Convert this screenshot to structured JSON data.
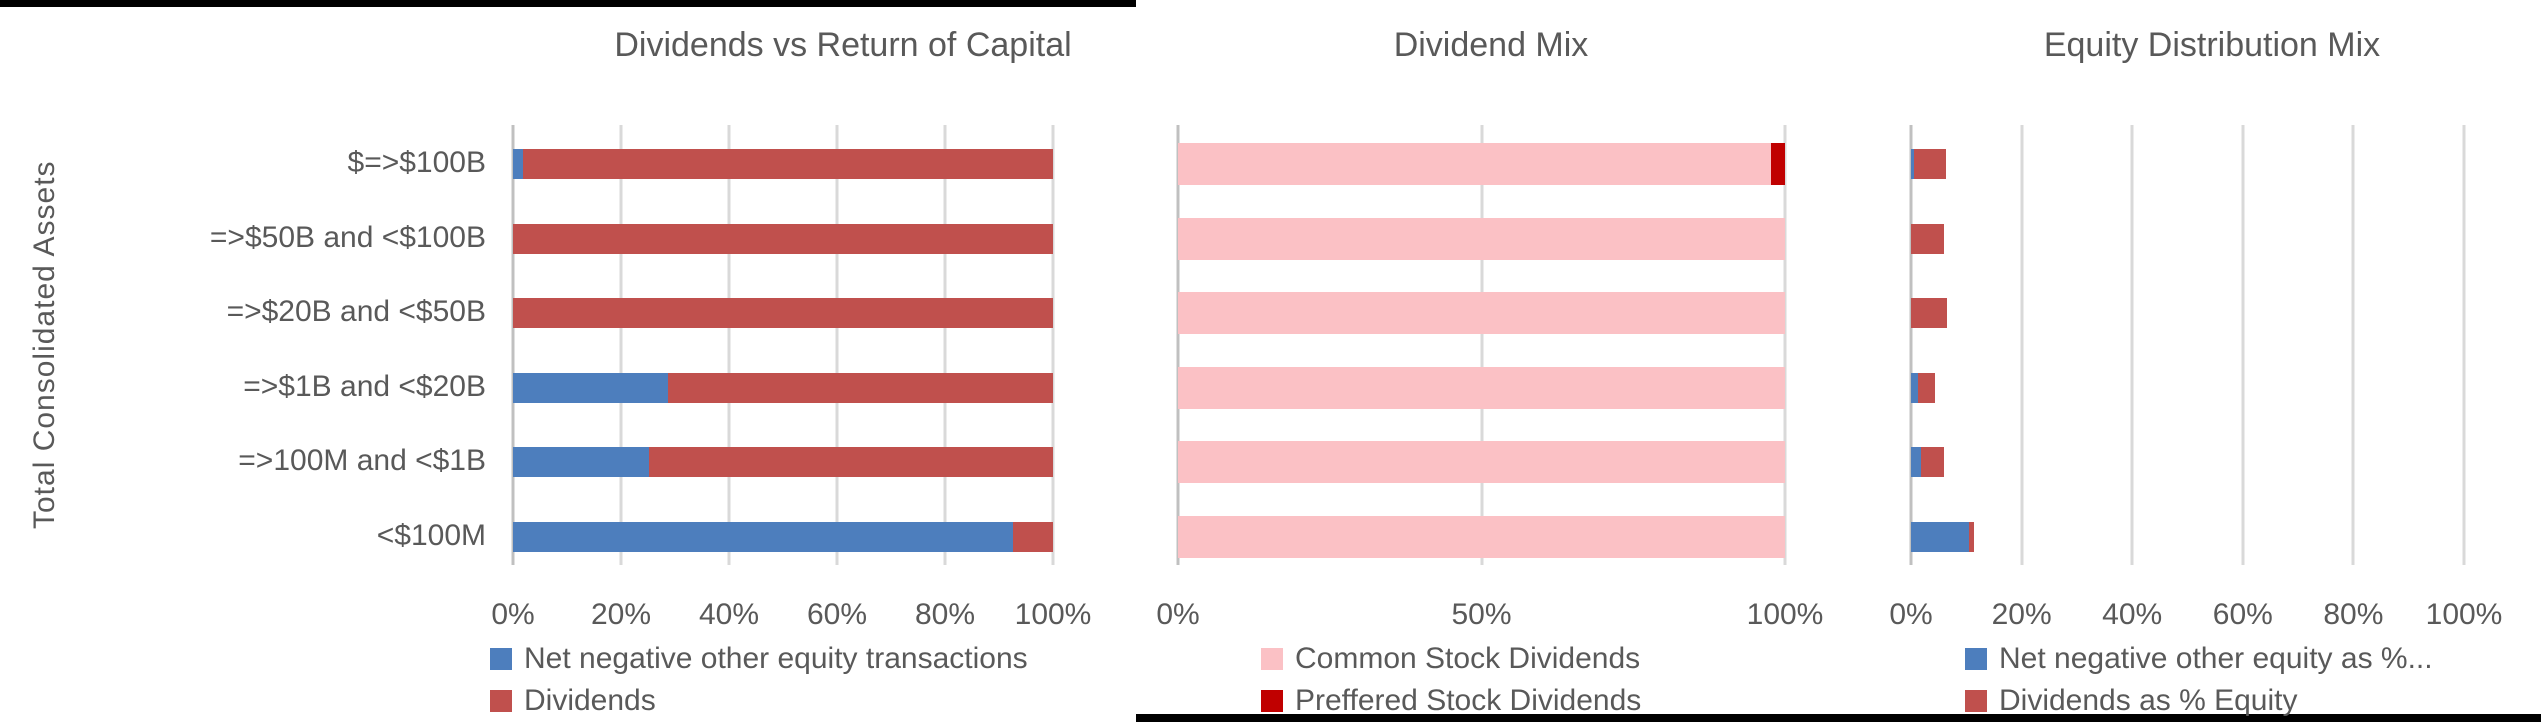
{
  "y_axis_title": "Total Consolidated Assets",
  "chart_data": [
    {
      "type": "bar",
      "orientation": "horizontal",
      "stacked": true,
      "title": "Dividends vs Return of Capital",
      "categories": [
        "$=>$100B",
        "=>$50B and <$100B",
        "=>$20B and <$50B",
        "=>$1B and <$20B",
        "=>100M and <$1B",
        "<$100M"
      ],
      "series": [
        {
          "name": "Net negative other equity transactions",
          "color": "#4D7EBD",
          "values": [
            1.8,
            0,
            0,
            28.7,
            25.2,
            92.5
          ]
        },
        {
          "name": "Dividends",
          "color": "#C0504D",
          "values": [
            98.2,
            100,
            100,
            71.3,
            74.8,
            7.5
          ]
        }
      ],
      "xlabel": "",
      "ylabel": "Total Consolidated Assets",
      "xlim": [
        0,
        100
      ],
      "xticks": [
        "0%",
        "20%",
        "40%",
        "60%",
        "80%",
        "100%"
      ],
      "grid": true,
      "legend_position": "bottom"
    },
    {
      "type": "bar",
      "orientation": "horizontal",
      "stacked": true,
      "title": "Dividend Mix",
      "categories": [
        "$=>$100B",
        "=>$50B and <$100B",
        "=>$20B and <$50B",
        "=>$1B and <$20B",
        "=>100M and <$1B",
        "<$100M"
      ],
      "series": [
        {
          "name": "Common Stock Dividends",
          "color": "#FBC1C5",
          "values": [
            97.7,
            100,
            100,
            100,
            100,
            100
          ]
        },
        {
          "name": "Preffered Stock Dividends",
          "color": "#C00000",
          "values": [
            2.3,
            0,
            0,
            0,
            0,
            0
          ]
        }
      ],
      "xlabel": "",
      "ylabel": "",
      "xlim": [
        0,
        100
      ],
      "xticks": [
        "0%",
        "50%",
        "100%"
      ],
      "grid": true,
      "legend_position": "bottom"
    },
    {
      "type": "bar",
      "orientation": "horizontal",
      "stacked": true,
      "title": "Equity Distribution Mix",
      "categories": [
        "$=>$100B",
        "=>$50B and <$100B",
        "=>$20B and <$50B",
        "=>$1B and <$20B",
        "=>100M and <$1B",
        "<$100M"
      ],
      "series": [
        {
          "name": "Net negative other equity as %...",
          "color": "#4D7EBD",
          "values": [
            0.5,
            0,
            0,
            1.3,
            1.8,
            10.4
          ]
        },
        {
          "name": "Dividends as % Equity",
          "color": "#C0504D",
          "values": [
            5.8,
            5.9,
            6.5,
            3.0,
            4.1,
            1.0
          ]
        }
      ],
      "xlabel": "",
      "ylabel": "",
      "xlim": [
        0,
        100
      ],
      "xticks": [
        "0%",
        "20%",
        "40%",
        "60%",
        "80%",
        "100%"
      ],
      "grid": true,
      "legend_position": "bottom"
    }
  ]
}
